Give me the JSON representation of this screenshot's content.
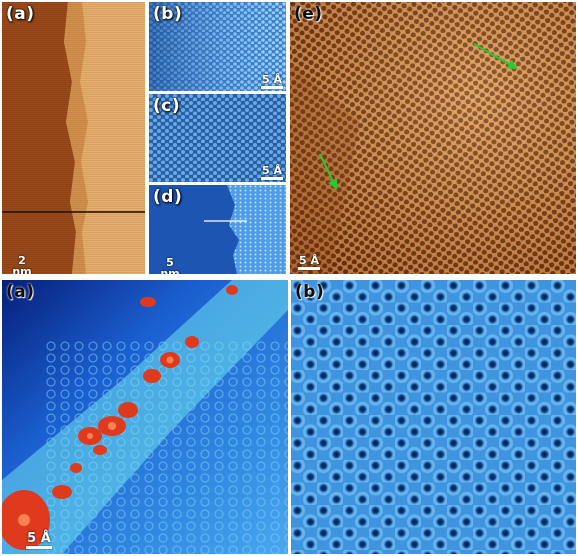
{
  "figure_top": {
    "panel_a": {
      "label": "(a)",
      "scalebar": "2 nm"
    },
    "panel_b": {
      "label": "(b)",
      "scalebar": "5 Å"
    },
    "panel_c": {
      "label": "(c)",
      "scalebar": "5 Å"
    },
    "panel_d": {
      "label": "(d)",
      "scalebar": "5 nm"
    },
    "panel_e": {
      "label": "(e)",
      "scalebar": "5 Å"
    }
  },
  "figure_bottom": {
    "panel_a": {
      "label": "(a)",
      "scalebar": "5 Å"
    },
    "panel_b": {
      "label": "(b)"
    }
  },
  "colors": {
    "stm_orange": "#c06a2e",
    "stm_blue": "#2f7fd6",
    "arrow_green": "#22cc33",
    "hotspot_red": "#e03a1e"
  }
}
